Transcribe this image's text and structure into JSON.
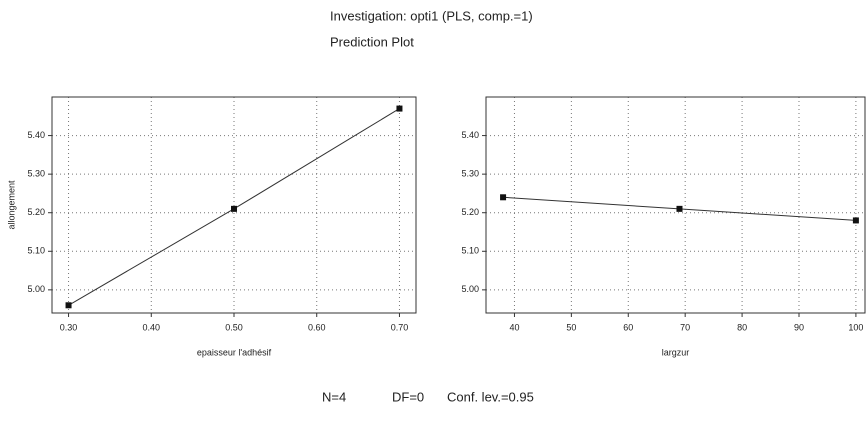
{
  "title": "Investigation: opti1 (PLS, comp.=1)",
  "subtitle": "Prediction Plot",
  "chart_data": [
    {
      "type": "line",
      "xlabel": "epaisseur l'adhésif",
      "ylabel": "allongement",
      "x": [
        0.3,
        0.5,
        0.7
      ],
      "values": [
        4.96,
        5.21,
        5.47
      ],
      "color": "#333333",
      "xlim": [
        0.28,
        0.72
      ],
      "ylim": [
        4.94,
        5.5
      ],
      "xticks": [
        {
          "value": 0.3,
          "label": "0.30"
        },
        {
          "value": 0.4,
          "label": "0.40"
        },
        {
          "value": 0.5,
          "label": "0.50"
        },
        {
          "value": 0.6,
          "label": "0.60"
        },
        {
          "value": 0.7,
          "label": "0.70"
        }
      ],
      "yticks": [
        {
          "value": 5.0,
          "label": "5.00"
        },
        {
          "value": 5.1,
          "label": "5.10"
        },
        {
          "value": 5.2,
          "label": "5.20"
        },
        {
          "value": 5.3,
          "label": "5.30"
        },
        {
          "value": 5.4,
          "label": "5.40"
        }
      ],
      "grid": true
    },
    {
      "type": "line",
      "xlabel": "largzur",
      "x": [
        38,
        69,
        100
      ],
      "values": [
        5.24,
        5.21,
        5.18
      ],
      "color": "#333333",
      "xlim": [
        35,
        101.6
      ],
      "ylim": [
        4.94,
        5.5
      ],
      "xticks": [
        40,
        50,
        60,
        70,
        80,
        90,
        100
      ],
      "yticks": [
        {
          "value": 5.0,
          "label": "5.00"
        },
        {
          "value": 5.1,
          "label": "5.10"
        },
        {
          "value": 5.2,
          "label": "5.20"
        },
        {
          "value": 5.3,
          "label": "5.30"
        },
        {
          "value": 5.4,
          "label": "5.40"
        }
      ],
      "grid": true
    }
  ],
  "footer": [
    "N=4",
    "DF=0",
    "Conf. lev.=0.95"
  ]
}
